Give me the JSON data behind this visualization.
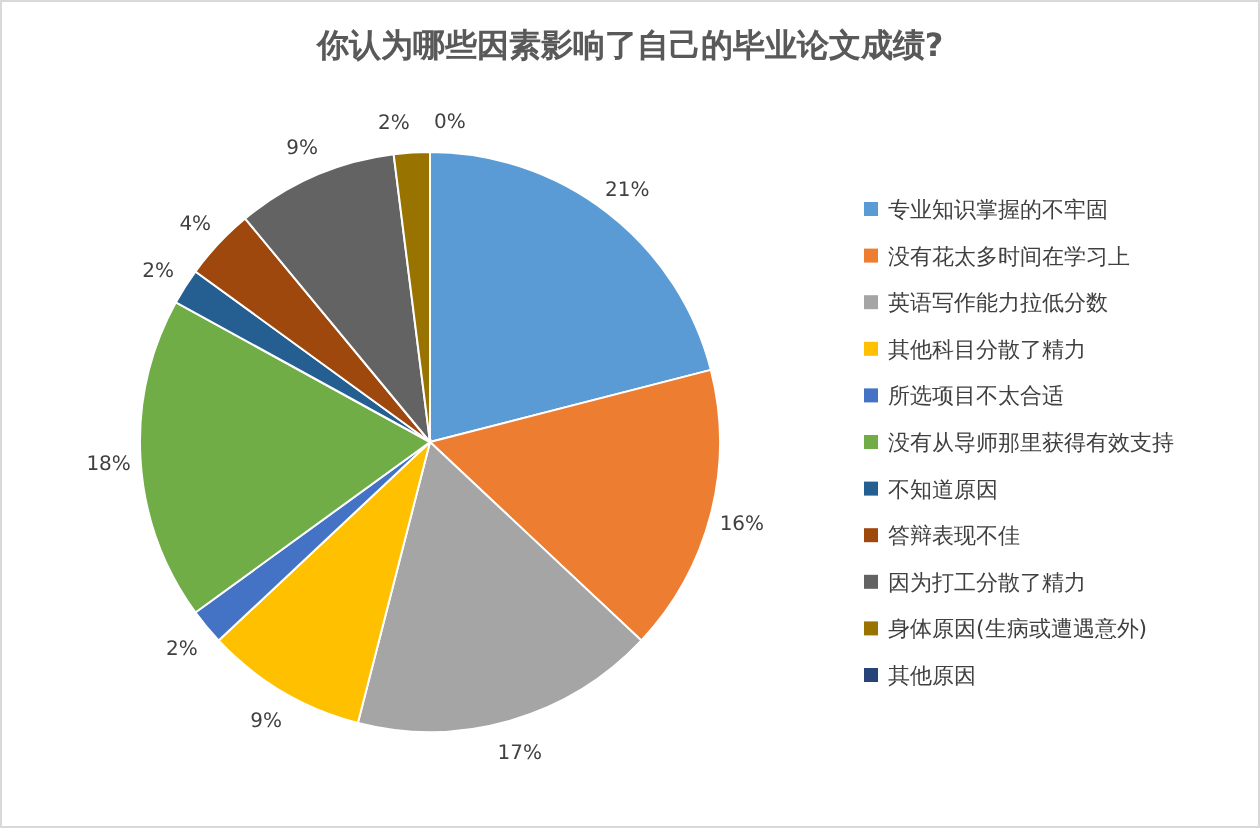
{
  "chart_data": {
    "type": "pie",
    "title": "你认为哪些因素影响了自己的毕业论文成绩?",
    "categories": [
      "专业知识掌握的不牢固",
      "没有花太多时间在学习上",
      "英语写作能力拉低分数",
      "其他科目分散了精力",
      "所选项目不太合适",
      "没有从导师那里获得有效支持",
      "不知道原因",
      "答辩表现不佳",
      "因为打工分散了精力",
      "身体原因(生病或遭遇意外)",
      "其他原因"
    ],
    "values": [
      21,
      16,
      17,
      9,
      2,
      18,
      2,
      4,
      9,
      2,
      0
    ],
    "value_labels": [
      "21%",
      "16%",
      "17%",
      "9%",
      "2%",
      "18%",
      "2%",
      "4%",
      "9%",
      "2%",
      "0%"
    ],
    "colors": [
      "#5b9bd5",
      "#ed7d31",
      "#a5a5a5",
      "#ffc000",
      "#4472c4",
      "#70ad47",
      "#255e91",
      "#9e480e",
      "#636363",
      "#997300",
      "#264478"
    ],
    "legend": "right"
  }
}
